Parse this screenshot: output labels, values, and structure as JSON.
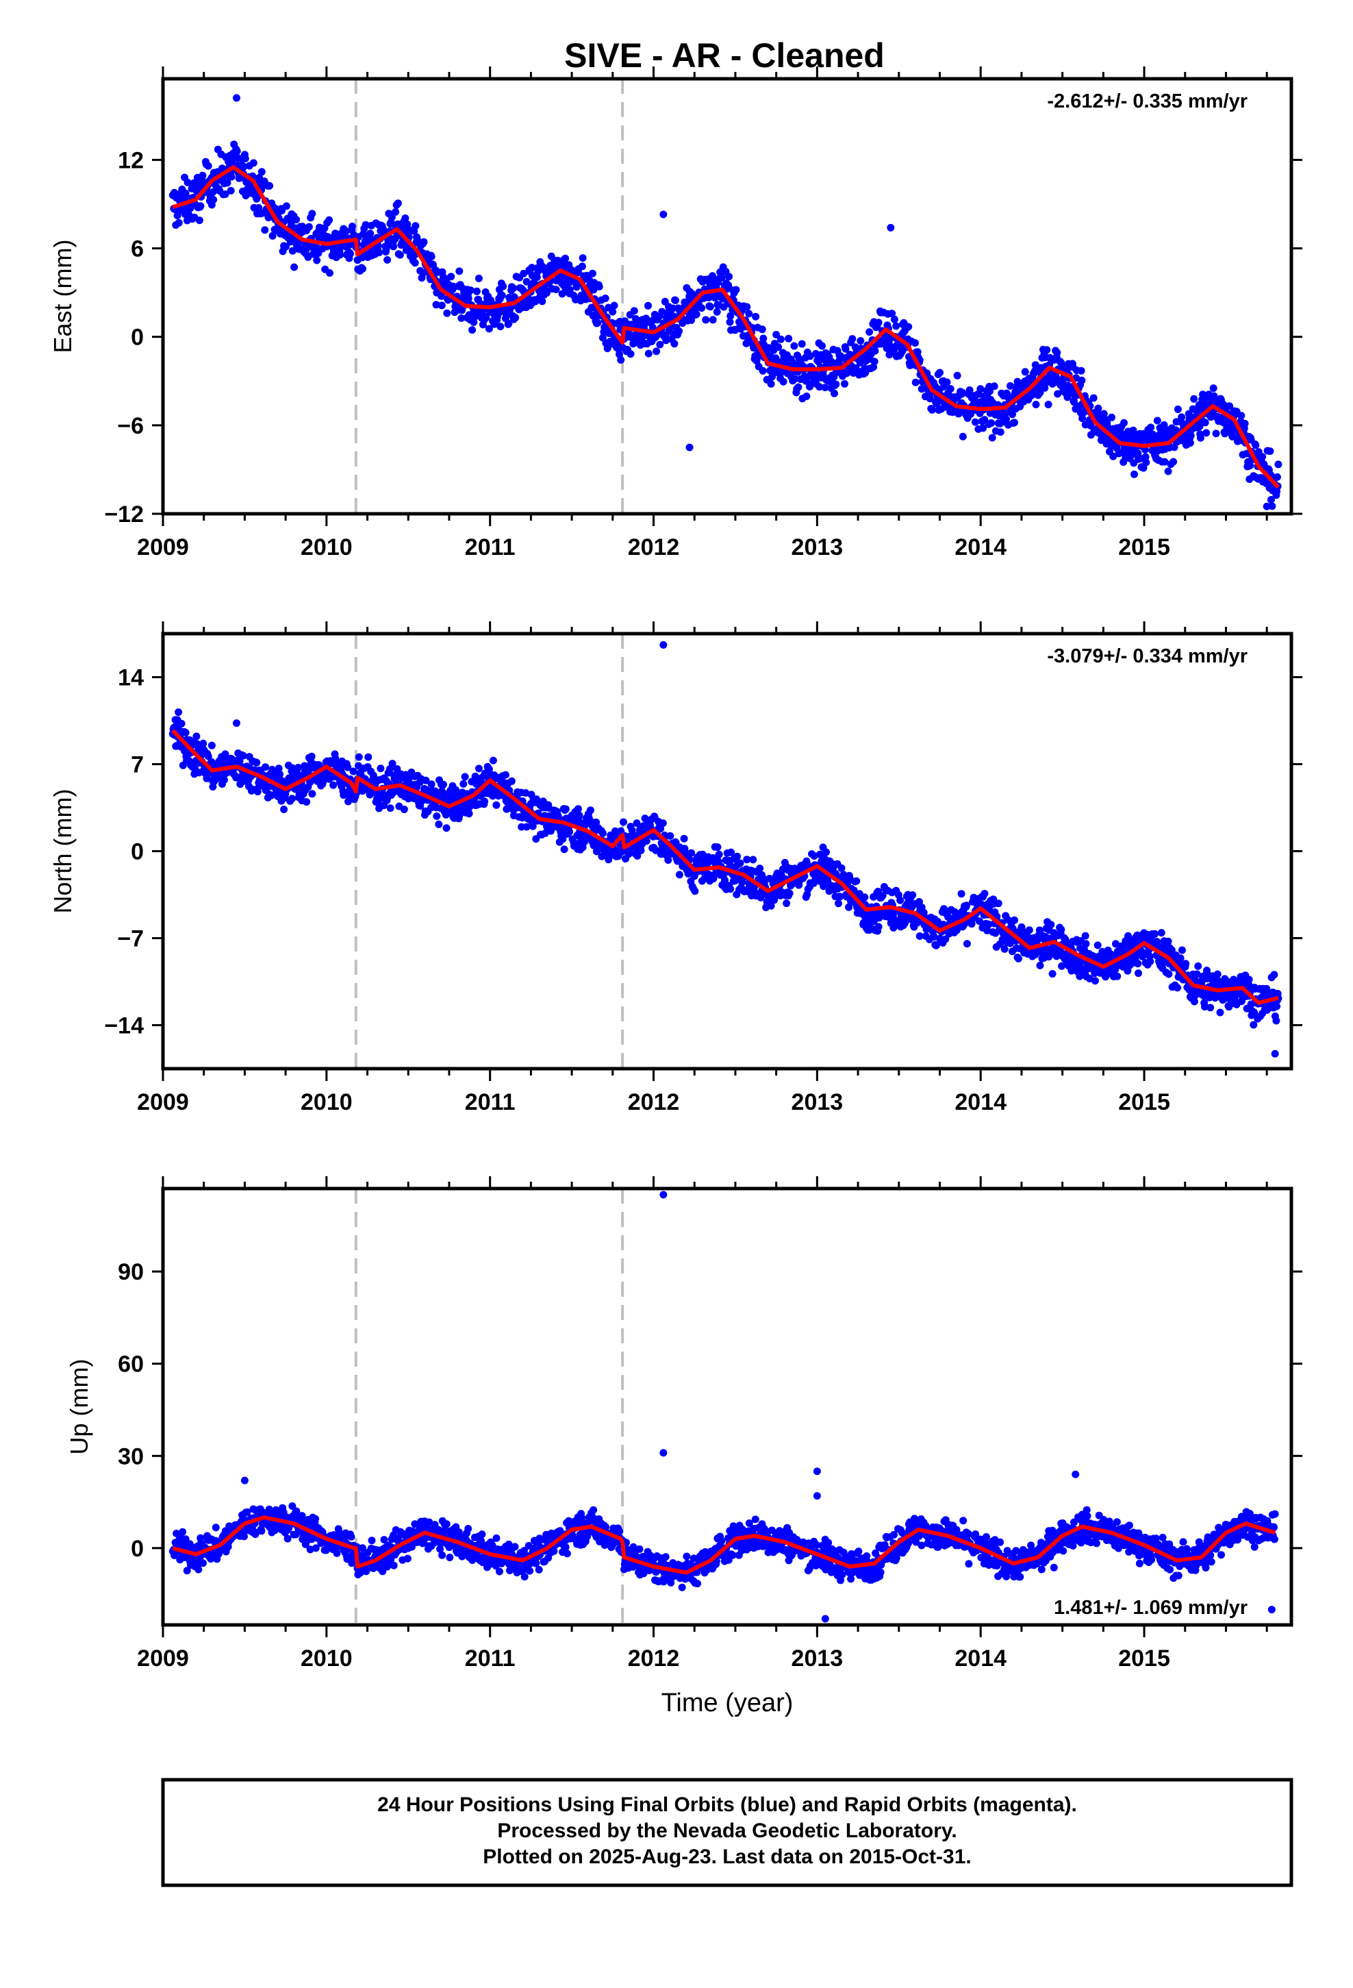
{
  "title": "SIVE  - AR - Cleaned",
  "chart_data": [
    {
      "type": "scatter",
      "ylabel": "East (mm)",
      "xlabel": "",
      "rate": "-2.612+/- 0.335 mm/yr",
      "xlim": [
        2009.0,
        2015.9
      ],
      "ylim": [
        -12,
        17.5
      ],
      "yticks": [
        -12,
        -6,
        0,
        6,
        12
      ],
      "xticks": [
        2009,
        2010,
        2011,
        2012,
        2013,
        2014,
        2015
      ],
      "steps": [
        2010.18,
        2011.81
      ],
      "model": {
        "x": [
          2009.06,
          2009.2,
          2009.3,
          2009.43,
          2009.55,
          2009.7,
          2009.85,
          2010.0,
          2010.18,
          2010.19,
          2010.3,
          2010.43,
          2010.55,
          2010.7,
          2010.85,
          2011.0,
          2011.15,
          2011.3,
          2011.43,
          2011.55,
          2011.7,
          2011.81,
          2011.82,
          2012.0,
          2012.15,
          2012.3,
          2012.42,
          2012.55,
          2012.7,
          2012.85,
          2013.0,
          2013.15,
          2013.3,
          2013.42,
          2013.55,
          2013.7,
          2013.85,
          2014.0,
          2014.15,
          2014.3,
          2014.42,
          2014.55,
          2014.7,
          2014.85,
          2015.0,
          2015.15,
          2015.3,
          2015.42,
          2015.55,
          2015.7,
          2015.82
        ],
        "y": [
          8.8,
          9.3,
          10.6,
          11.5,
          10.6,
          7.8,
          6.6,
          6.3,
          6.6,
          5.6,
          6.4,
          7.3,
          5.9,
          3.2,
          2.1,
          2.0,
          2.3,
          3.5,
          4.5,
          3.9,
          1.3,
          -0.4,
          0.6,
          0.3,
          1.2,
          3.0,
          3.2,
          1.2,
          -1.8,
          -2.2,
          -2.2,
          -2.1,
          -0.8,
          0.5,
          -0.5,
          -3.6,
          -4.7,
          -4.9,
          -4.8,
          -3.5,
          -2.1,
          -2.7,
          -5.8,
          -7.2,
          -7.4,
          -7.2,
          -5.8,
          -4.7,
          -5.6,
          -8.8,
          -10.2
        ]
      },
      "outliers": [
        [
          2012.06,
          8.3
        ],
        [
          2013.45,
          7.4
        ],
        [
          2009.45,
          16.2
        ],
        [
          2012.22,
          -7.5
        ],
        [
          2015.75,
          -11.5
        ]
      ],
      "noise": 1.1
    },
    {
      "type": "scatter",
      "ylabel": "North (mm)",
      "xlabel": "",
      "rate": "-3.079+/- 0.334 mm/yr",
      "xlim": [
        2009.0,
        2015.9
      ],
      "ylim": [
        -17.5,
        17.5
      ],
      "yticks": [
        -14,
        -7,
        0,
        7,
        14
      ],
      "xticks": [
        2009,
        2010,
        2011,
        2012,
        2013,
        2014,
        2015
      ],
      "steps": [
        2010.18,
        2011.81
      ],
      "model": {
        "x": [
          2009.06,
          2009.2,
          2009.3,
          2009.45,
          2009.6,
          2009.75,
          2009.9,
          2010.0,
          2010.15,
          2010.18,
          2010.19,
          2010.3,
          2010.45,
          2010.6,
          2010.75,
          2010.9,
          2011.0,
          2011.15,
          2011.3,
          2011.45,
          2011.6,
          2011.75,
          2011.81,
          2011.82,
          2012.0,
          2012.1,
          2012.25,
          2012.4,
          2012.55,
          2012.7,
          2012.85,
          2013.0,
          2013.15,
          2013.3,
          2013.45,
          2013.6,
          2013.75,
          2013.9,
          2014.0,
          2014.15,
          2014.3,
          2014.45,
          2014.6,
          2014.75,
          2014.9,
          2015.0,
          2015.15,
          2015.3,
          2015.45,
          2015.6,
          2015.7,
          2015.82
        ],
        "y": [
          9.7,
          7.8,
          6.5,
          6.8,
          6.0,
          5.0,
          6.0,
          6.8,
          5.5,
          4.8,
          5.9,
          5.0,
          5.3,
          4.5,
          3.6,
          4.5,
          5.7,
          4.2,
          2.6,
          2.3,
          1.6,
          0.4,
          1.3,
          0.3,
          1.7,
          0.5,
          -1.5,
          -1.3,
          -1.9,
          -3.2,
          -2.2,
          -1.2,
          -2.6,
          -4.7,
          -4.5,
          -5.0,
          -6.4,
          -5.5,
          -4.6,
          -6.2,
          -7.8,
          -7.3,
          -8.4,
          -9.3,
          -8.3,
          -7.4,
          -8.6,
          -10.8,
          -11.2,
          -11.0,
          -12.2,
          -11.8
        ]
      },
      "outliers": [
        [
          2012.06,
          16.6
        ],
        [
          2015.8,
          -16.3
        ],
        [
          2009.45,
          10.3
        ]
      ],
      "noise": 1.15
    },
    {
      "type": "scatter",
      "ylabel": "Up (mm)",
      "xlabel": "Time (year)",
      "rate": "1.481+/- 1.069 mm/yr",
      "xlim": [
        2009.0,
        2015.9
      ],
      "ylim": [
        -25,
        117
      ],
      "yticks": [
        0,
        30,
        60,
        90
      ],
      "xticks": [
        2009,
        2010,
        2011,
        2012,
        2013,
        2014,
        2015
      ],
      "steps": [
        2010.18,
        2011.81
      ],
      "model": {
        "x": [
          2009.06,
          2009.2,
          2009.35,
          2009.5,
          2009.62,
          2009.8,
          2010.0,
          2010.17,
          2010.18,
          2010.19,
          2010.3,
          2010.45,
          2010.6,
          2010.8,
          2011.0,
          2011.2,
          2011.35,
          2011.5,
          2011.62,
          2011.8,
          2011.81,
          2011.82,
          2012.0,
          2012.2,
          2012.35,
          2012.5,
          2012.62,
          2012.8,
          2013.0,
          2013.2,
          2013.35,
          2013.5,
          2013.62,
          2013.8,
          2014.0,
          2014.2,
          2014.35,
          2014.5,
          2014.62,
          2014.8,
          2015.0,
          2015.2,
          2015.35,
          2015.5,
          2015.62,
          2015.8
        ],
        "y": [
          0,
          -2,
          1,
          8,
          10,
          8,
          3,
          0,
          0,
          -6,
          -4,
          1,
          5,
          2,
          -2,
          -4,
          0,
          6,
          7,
          3,
          2,
          -3,
          -6,
          -8,
          -4,
          3,
          4,
          2,
          -2,
          -6,
          -5,
          2,
          6,
          4,
          0,
          -5,
          -3,
          4,
          7,
          5,
          1,
          -4,
          -3,
          5,
          8,
          5
        ]
      },
      "outliers": [
        [
          2012.06,
          115
        ],
        [
          2012.06,
          31
        ],
        [
          2013.0,
          25
        ],
        [
          2013.0,
          17
        ],
        [
          2013.05,
          -23
        ],
        [
          2009.5,
          22
        ],
        [
          2014.58,
          24
        ],
        [
          2015.78,
          -20
        ]
      ],
      "noise": 3.6
    }
  ],
  "footer": {
    "line1": "24 Hour Positions Using Final Orbits (blue) and Rapid Orbits (magenta).",
    "line2": "Processed by the Nevada Geodetic Laboratory.",
    "line3": "Plotted on 2025-Aug-23. Last data on 2015-Oct-31."
  },
  "colors": {
    "points": "#0000ff",
    "model": "#ff0000",
    "steps": "#c0c0c0",
    "frame": "#000000"
  }
}
